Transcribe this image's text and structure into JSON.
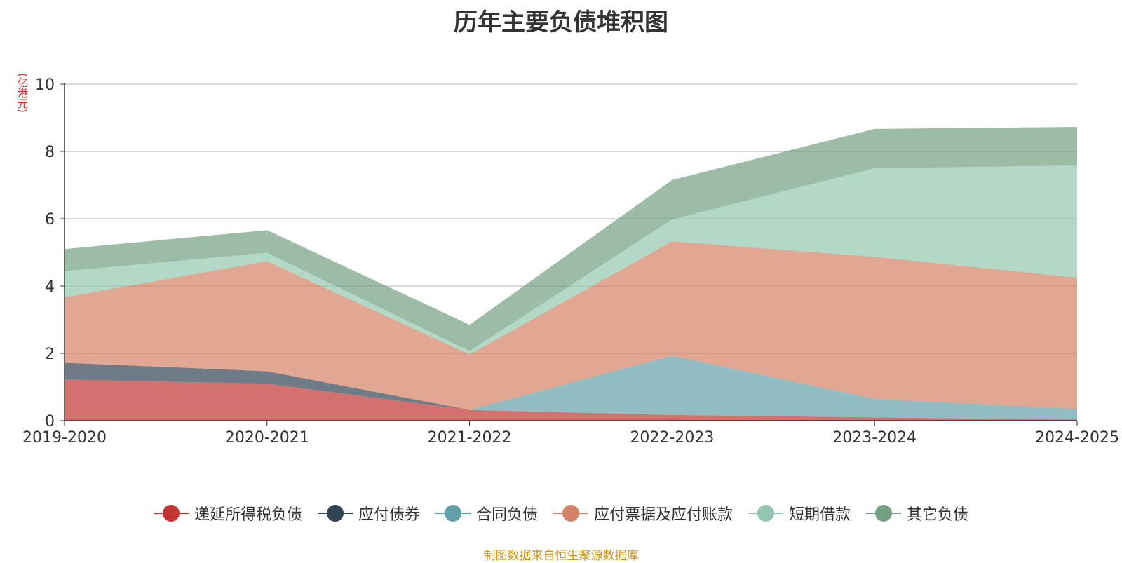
{
  "title": "历年主要负债堆积图",
  "unit_label": "(亿港元)",
  "source": "制图数据来自恒生聚源数据库",
  "chart_data": {
    "type": "area",
    "stacked": true,
    "title": "历年主要负债堆积图",
    "ylabel": "(亿港元)",
    "ylim": [
      0,
      10
    ],
    "yticks": [
      0,
      2,
      4,
      6,
      8,
      10
    ],
    "grid": true,
    "legend_position": "bottom",
    "categories": [
      "2019-2020",
      "2020-2021",
      "2021-2022",
      "2022-2023",
      "2023-2024",
      "2024-2025"
    ],
    "series": [
      {
        "name": "递延所得税负债",
        "color": "#c23531",
        "values": [
          1.22,
          1.1,
          0.32,
          0.17,
          0.1,
          0.03
        ]
      },
      {
        "name": "应付债券",
        "color": "#2f4554",
        "values": [
          0.5,
          0.37,
          0.0,
          0.0,
          0.0,
          0.0
        ]
      },
      {
        "name": "合同负债",
        "color": "#61a0a8",
        "values": [
          0.0,
          0.0,
          0.0,
          1.76,
          0.55,
          0.32
        ]
      },
      {
        "name": "应付票据及应付账款",
        "color": "#d48265",
        "values": [
          1.95,
          3.27,
          1.65,
          3.4,
          4.22,
          3.9
        ]
      },
      {
        "name": "短期借款",
        "color": "#91c7ae",
        "values": [
          0.77,
          0.25,
          0.1,
          0.65,
          2.63,
          3.33
        ]
      },
      {
        "name": "其它负债",
        "color": "#749f83",
        "values": [
          0.66,
          0.67,
          0.78,
          1.17,
          1.17,
          1.15
        ]
      }
    ]
  }
}
